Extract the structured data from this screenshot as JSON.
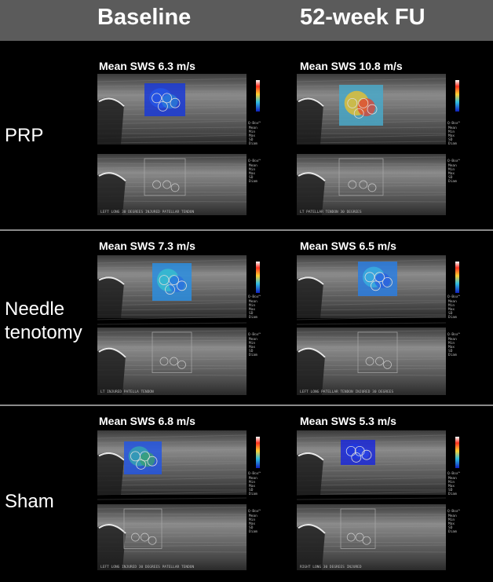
{
  "columns": [
    "Baseline",
    "52-week FU"
  ],
  "rows": [
    {
      "label_lines": [
        "PRP"
      ],
      "cells": [
        {
          "mean_sws": "Mean SWS  6.3 m/s",
          "map": "blue",
          "caption": "LEFT LONG 30 DEGREES INJURED PATELLAR TENDON"
        },
        {
          "mean_sws": "Mean SWS  10.8 m/s",
          "map": "hot",
          "caption": "LT PATELLAR TENDON 30 DEGREES"
        }
      ]
    },
    {
      "label_lines": [
        "Needle",
        "tenotomy"
      ],
      "cells": [
        {
          "mean_sws": "Mean SWS  7.3 m/s",
          "map": "cyan",
          "caption": "LT INJURED PATELLA TENDON"
        },
        {
          "mean_sws": "Mean SWS  6.5 m/s",
          "map": "cyan2",
          "caption": "LEFT LONG PATELLAR TENDON INJURED 30 DEGREES"
        }
      ]
    },
    {
      "label_lines": [
        "Sham"
      ],
      "cells": [
        {
          "mean_sws": "Mean SWS  6.8 m/s",
          "map": "blue-green",
          "caption": "LEFT LONG INJURED 30 DEGREES PATELLAR TENDON"
        },
        {
          "mean_sws": "Mean SWS 5.3 m/s",
          "map": "deep-blue",
          "caption": "RIGHT LONG 30 DEGREES INJURED"
        }
      ]
    }
  ],
  "qbox_label": "Q-Box™",
  "qbox_fields": [
    "Mean",
    "Min",
    "Max",
    "SD",
    "Diam"
  ],
  "colors": {
    "header_bg": "#5b5b5b",
    "separator": "#8a8a8a"
  }
}
